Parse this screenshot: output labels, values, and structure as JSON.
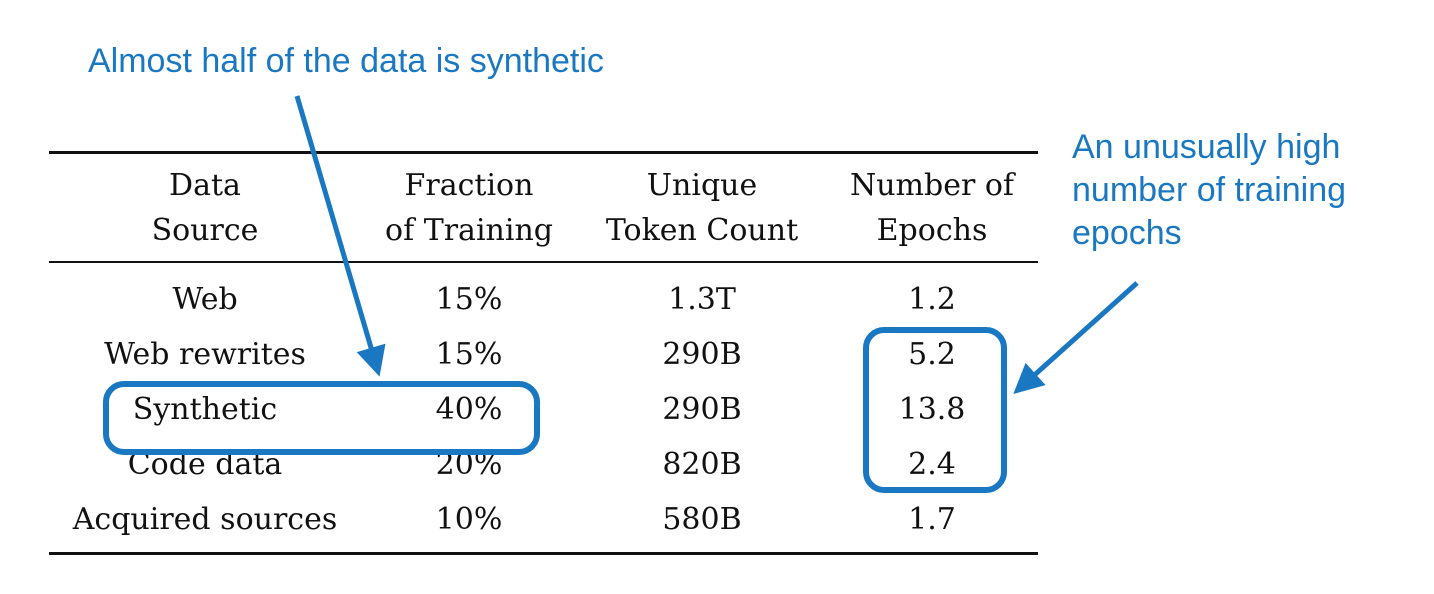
{
  "annotations": {
    "synthetic_note": "Almost half of the data is synthetic",
    "epochs_note": [
      "An unusually high",
      "number of training",
      "epochs"
    ],
    "color": "#1a78c2"
  },
  "table": {
    "headers": [
      [
        "Data",
        "Source"
      ],
      [
        "Fraction",
        "of Training"
      ],
      [
        "Unique",
        "Token Count"
      ],
      [
        "Number of",
        "Epochs"
      ]
    ],
    "rows": [
      [
        "Web",
        "15%",
        "1.3T",
        "1.2"
      ],
      [
        "Web rewrites",
        "15%",
        "290B",
        "5.2"
      ],
      [
        "Synthetic",
        "40%",
        "290B",
        "13.8"
      ],
      [
        "Code data",
        "20%",
        "820B",
        "2.4"
      ],
      [
        "Acquired sources",
        "10%",
        "580B",
        "1.7"
      ]
    ]
  },
  "highlights": {
    "synthetic_row_box": {
      "row": "Synthetic",
      "columns": [
        "Data Source",
        "Fraction of Training"
      ]
    },
    "epochs_box": {
      "rows": [
        "Web rewrites",
        "Synthetic",
        "Code data"
      ],
      "column": "Number of Epochs"
    }
  }
}
